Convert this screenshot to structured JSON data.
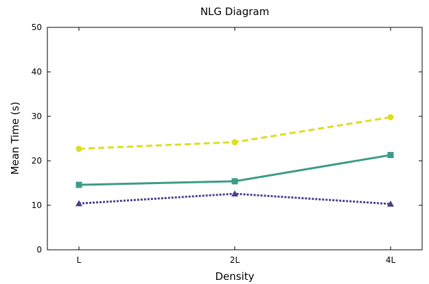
{
  "chart_data": {
    "type": "line",
    "title": "NLG Diagram",
    "xlabel": "Density",
    "ylabel": "Mean Time (s)",
    "categories": [
      "L",
      "2L",
      "4L"
    ],
    "ylim": [
      0,
      50
    ],
    "yticks": [
      0,
      10,
      20,
      30,
      40,
      50
    ],
    "grid": false,
    "legend": "none",
    "series": [
      {
        "values": [
          22.7,
          24.2,
          29.8
        ],
        "color": "#dddd22",
        "dash": "dashed",
        "marker": "circle"
      },
      {
        "values": [
          14.6,
          15.4,
          21.3
        ],
        "color": "#3a9c88",
        "dash": "solid",
        "marker": "square"
      },
      {
        "values": [
          10.4,
          12.6,
          10.3
        ],
        "color": "#4b3d8a",
        "dash": "dotted",
        "marker": "triangle"
      }
    ]
  }
}
